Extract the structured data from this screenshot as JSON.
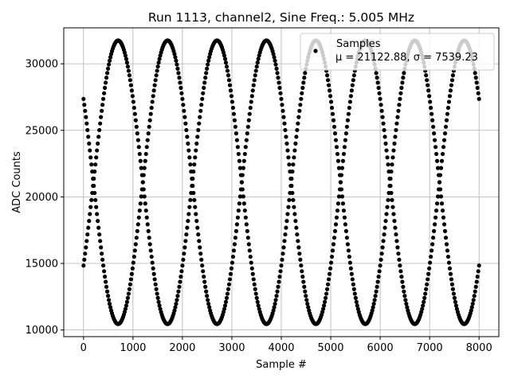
{
  "chart_data": {
    "type": "scatter",
    "title": "Run 1113, channel2, Sine Freq.: 5.005 MHz",
    "xlabel": "Sample #",
    "ylabel": "ADC Counts",
    "xlim": [
      -400,
      8400
    ],
    "ylim": [
      9500,
      32700
    ],
    "xticks": [
      0,
      1000,
      2000,
      3000,
      4000,
      5000,
      6000,
      7000,
      8000
    ],
    "yticks": [
      10000,
      15000,
      20000,
      25000,
      30000
    ],
    "grid": true,
    "legend": {
      "placement": "top-right",
      "entries": [
        {
          "label": "Samples",
          "stats": "μ = 21122.88, σ = 7539.23"
        }
      ]
    },
    "series": [
      {
        "name": "Samples",
        "color": "#000000",
        "marker": "point",
        "n_samples": [
          0,
          8000
        ],
        "waveform": {
          "min": 10450,
          "max": 31750,
          "period": 2000,
          "phase_peaks_at": [
            700,
            1700
          ]
        },
        "interleaved_phases": 2,
        "mean": 21122.88,
        "std": 7539.23
      }
    ]
  }
}
